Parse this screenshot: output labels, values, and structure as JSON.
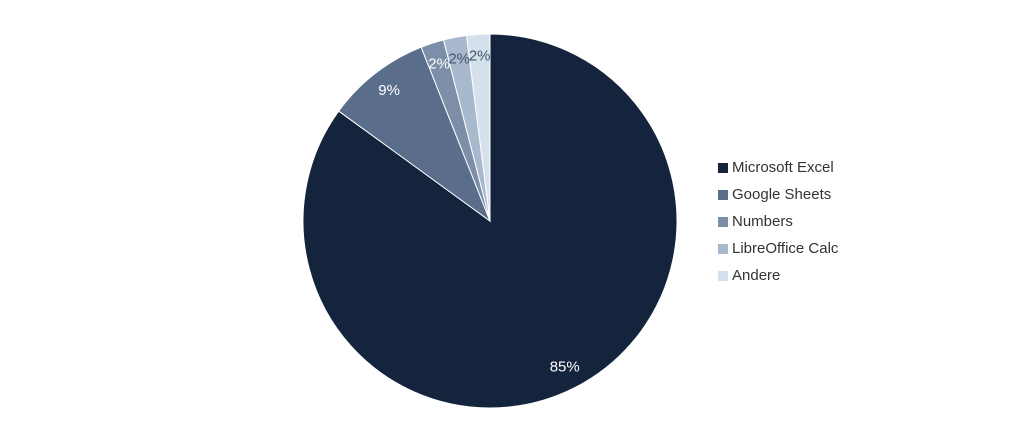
{
  "chart_data": {
    "type": "pie",
    "categories": [
      "Microsoft Excel",
      "Google Sheets",
      "Numbers",
      "LibreOffice Calc",
      "Andere"
    ],
    "values": [
      85,
      9,
      2,
      2,
      2
    ],
    "value_labels": [
      "85%",
      "9%",
      "2%",
      "2%",
      "2%"
    ],
    "colors": [
      "#14243d",
      "#5a6e8c",
      "#7d8fa8",
      "#a8b8cd",
      "#d5e0ed"
    ],
    "legend": "right"
  }
}
